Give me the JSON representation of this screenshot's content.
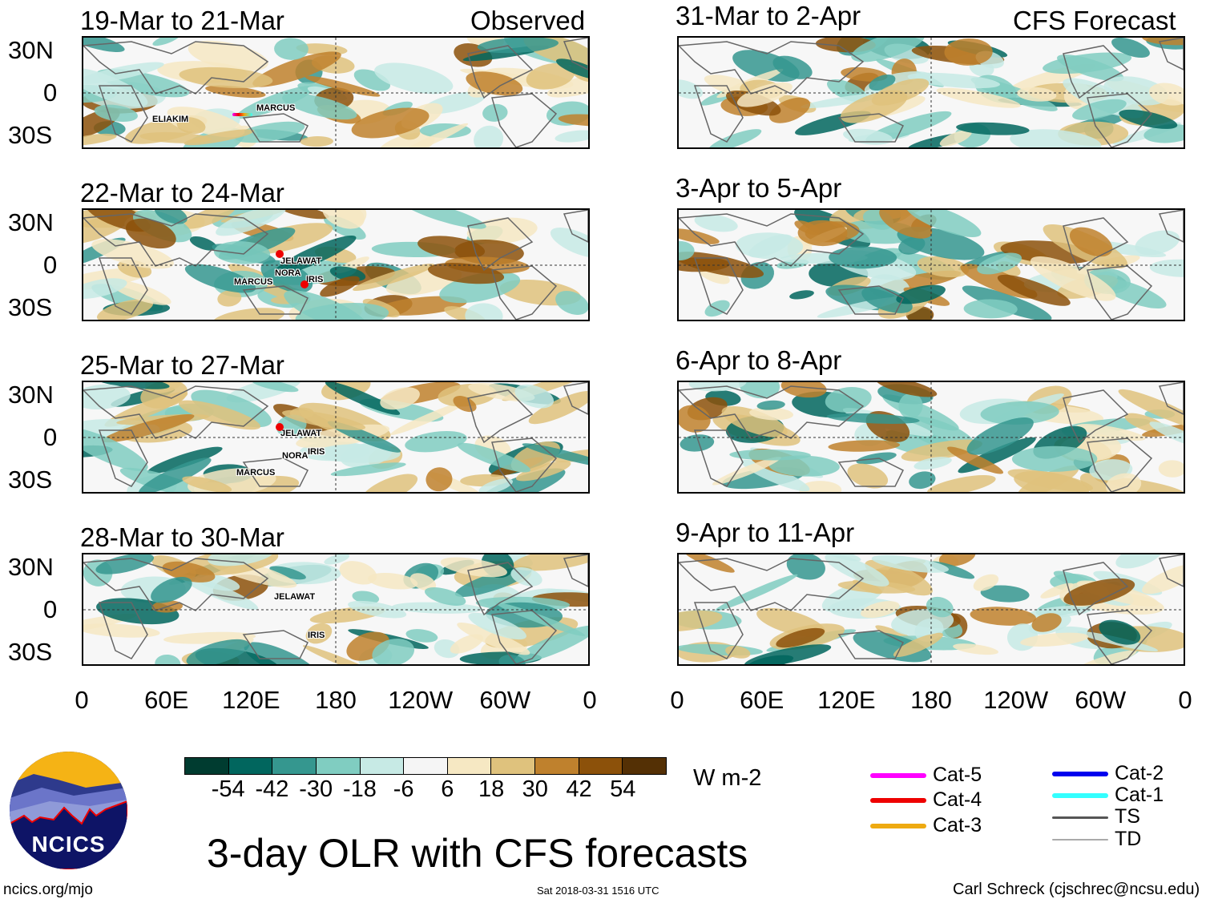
{
  "observed_label": "Observed",
  "forecast_label": "CFS Forecast",
  "panels_left": [
    {
      "date": "19-Mar to 21-Mar",
      "storms": [
        "ELIAKIM",
        "MARCUS"
      ]
    },
    {
      "date": "22-Mar to 24-Mar",
      "storms": [
        "JELAWAT",
        "NORA",
        "MARCUS",
        "IRIS"
      ]
    },
    {
      "date": "25-Mar to 27-Mar",
      "storms": [
        "JELAWAT",
        "NORA",
        "IRIS",
        "MARCUS"
      ]
    },
    {
      "date": "28-Mar to 30-Mar",
      "storms": [
        "JELAWAT",
        "IRIS"
      ]
    }
  ],
  "panels_right": [
    {
      "date": "31-Mar to 2-Apr"
    },
    {
      "date": "3-Apr to 5-Apr"
    },
    {
      "date": "6-Apr to 8-Apr"
    },
    {
      "date": "9-Apr to 11-Apr"
    }
  ],
  "lat_ticks": [
    "30N",
    "0",
    "30S"
  ],
  "lon_ticks": [
    "0",
    "60E",
    "120E",
    "180",
    "120W",
    "60W",
    "0"
  ],
  "colorbar": {
    "colors": [
      "#003c30",
      "#01665e",
      "#35978f",
      "#80cdc1",
      "#c7eae5",
      "#f5f5f5",
      "#f6e8c3",
      "#dfc27d",
      "#bf812d",
      "#8c510a",
      "#543005"
    ],
    "labels": [
      "-54",
      "-42",
      "-30",
      "-18",
      "-6",
      "6",
      "18",
      "30",
      "42",
      "54"
    ],
    "units": "W m-2"
  },
  "title": "3-day OLR with CFS forecasts",
  "logo_text": "NCICS",
  "site": "ncics.org/mjo",
  "timestamp": "Sat 2018-03-31 1516 UTC",
  "author": "Carl Schreck (cjschrec@ncsu.edu)",
  "legend": [
    {
      "label": "Cat-5",
      "color": "#ff00ff"
    },
    {
      "label": "Cat-4",
      "color": "#ee0000"
    },
    {
      "label": "Cat-3",
      "color": "#eeaa11"
    },
    {
      "label": "Cat-2",
      "color": "#0000ee"
    },
    {
      "label": "Cat-1",
      "color": "#33ffff"
    },
    {
      "label": "TS",
      "color": "#555555"
    },
    {
      "label": "TD",
      "color": "#aaaaaa"
    }
  ]
}
